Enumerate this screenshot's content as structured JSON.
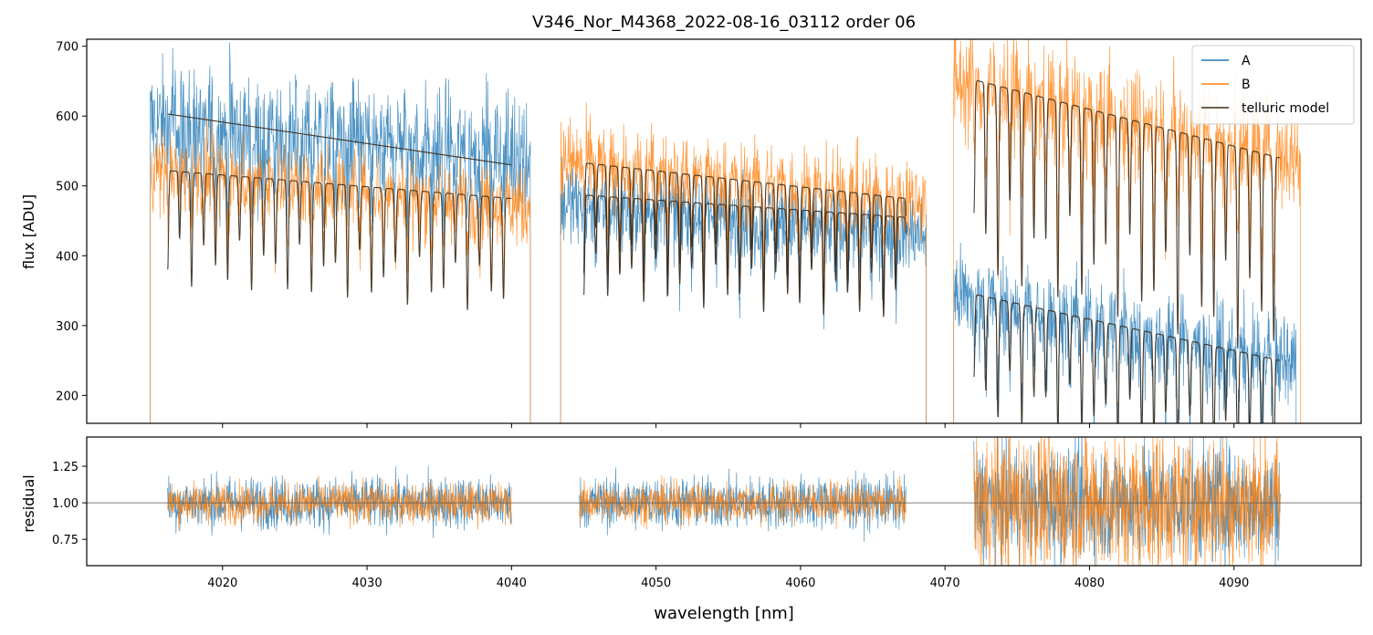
{
  "colors": {
    "A": "#1f77b4",
    "B": "#ff7f0e",
    "telluric": "#3a2a1a",
    "resid_ref": "#555555"
  },
  "chart_data": [
    {
      "type": "line",
      "title": "V346_Nor_M4368_2022-08-16_03112  order 06",
      "xlabel": "",
      "ylabel": "flux [ADU]",
      "xlim": [
        4010.6,
        4098.8
      ],
      "ylim": [
        160,
        710
      ],
      "yticks": [
        200,
        300,
        400,
        500,
        600,
        700
      ],
      "xticks": [
        4020,
        4030,
        4040,
        4050,
        4060,
        4070,
        4080,
        4090
      ],
      "grid": false,
      "legend_position": "top-right",
      "legend": [
        "A",
        "B",
        "telluric model"
      ],
      "series": [
        {
          "name": "A",
          "segments": [
            {
              "x": [
                4015,
                4041.3
              ],
              "y_start": 590,
              "y_end": 545,
              "noise": 45
            },
            {
              "x": [
                4043.4,
                4068.7
              ],
              "y_start": 475,
              "y_end": 430,
              "noise": 30
            },
            {
              "x": [
                4070.6,
                4094.3
              ],
              "y_start": 345,
              "y_end": 245,
              "noise": 35
            }
          ]
        },
        {
          "name": "B",
          "segments": [
            {
              "x": [
                4015,
                4041.3
              ],
              "y_start": 525,
              "y_end": 470,
              "noise": 30
            },
            {
              "x": [
                4043.4,
                4068.7
              ],
              "y_start": 535,
              "y_end": 480,
              "noise": 30
            },
            {
              "x": [
                4070.6,
                4094.6
              ],
              "y_start": 650,
              "y_end": 540,
              "noise": 40
            }
          ]
        },
        {
          "name": "telluric model",
          "segments": [
            {
              "x": [
                4016.2,
                4040
              ],
              "y_start": 603,
              "y_end": 530,
              "lines": false
            },
            {
              "x": [
                4016.2,
                4040
              ],
              "y_start": 522,
              "y_end": 482,
              "lines": true,
              "spacing": 0.83,
              "depth": 165
            },
            {
              "x": [
                4045,
                4067.3
              ],
              "y_start": 533,
              "y_end": 482,
              "lines": true,
              "spacing": 0.83,
              "depth": 165
            },
            {
              "x": [
                4045,
                4067.3
              ],
              "y_start": 487,
              "y_end": 455,
              "lines": true,
              "spacing": 0.83,
              "depth": 150
            },
            {
              "x": [
                4072,
                4093.2
              ],
              "y_start": 652,
              "y_end": 540,
              "lines": true,
              "spacing": 0.83,
              "depth": 290
            },
            {
              "x": [
                4072,
                4093.2
              ],
              "y_start": 345,
              "y_end": 250,
              "lines": true,
              "spacing": 0.83,
              "depth": 180
            }
          ]
        }
      ]
    },
    {
      "type": "line",
      "title": "",
      "xlabel": "wavelength [nm]",
      "ylabel": "residual",
      "xlim": [
        4010.6,
        4098.8
      ],
      "ylim": [
        0.57,
        1.45
      ],
      "yticks": [
        0.75,
        1.0,
        1.25
      ],
      "ytick_labels": [
        "0.75",
        "1.00",
        "1.25"
      ],
      "xticks": [
        4020,
        4030,
        4040,
        4050,
        4060,
        4070,
        4080,
        4090
      ],
      "reference_line": 1.0,
      "series": [
        {
          "name": "A",
          "segments": [
            {
              "x": [
                4016.2,
                4040
              ],
              "center": 1.0,
              "noise": 0.09
            },
            {
              "x": [
                4044.7,
                4067.3
              ],
              "center": 1.0,
              "noise": 0.09
            },
            {
              "x": [
                4072,
                4093.2
              ],
              "center": 1.0,
              "noise": 0.2
            }
          ]
        },
        {
          "name": "B",
          "segments": [
            {
              "x": [
                4016.2,
                4040
              ],
              "center": 1.0,
              "noise": 0.07
            },
            {
              "x": [
                4044.7,
                4067.3
              ],
              "center": 1.0,
              "noise": 0.07
            },
            {
              "x": [
                4072,
                4093.2
              ],
              "center": 1.0,
              "noise": 0.25
            }
          ]
        }
      ]
    }
  ]
}
